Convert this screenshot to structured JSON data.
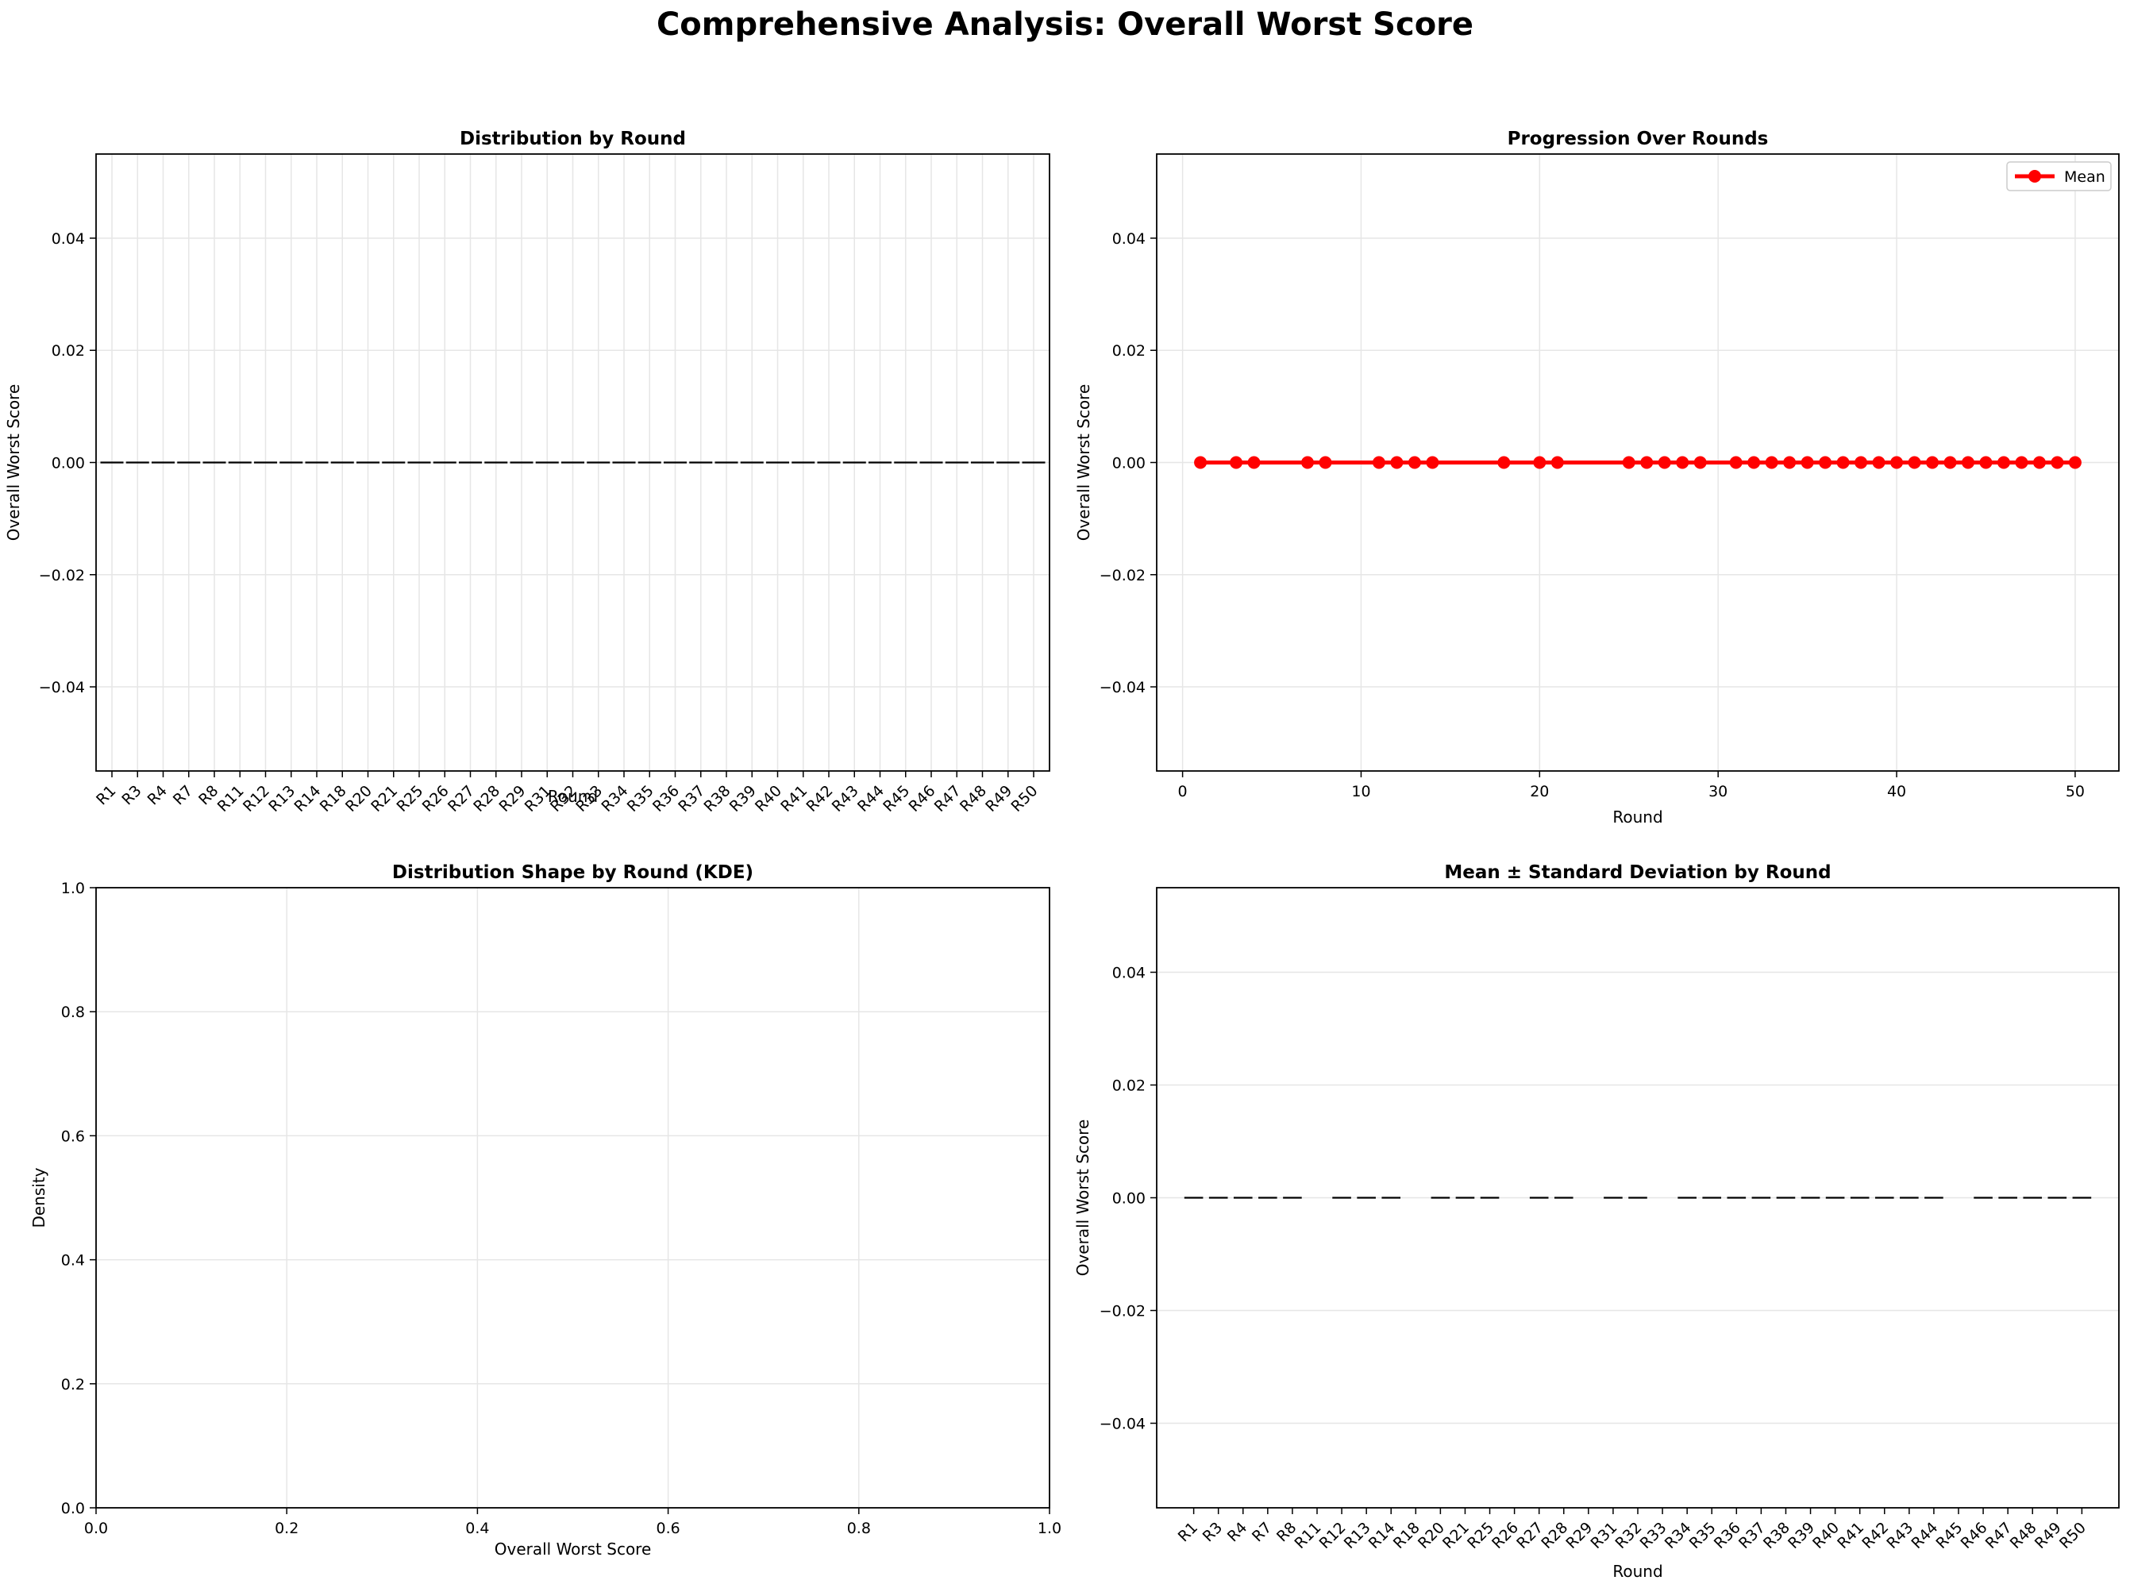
{
  "figure_title": "Comprehensive Analysis: Overall Worst Score",
  "chart_data": [
    {
      "type": "box",
      "title": "Distribution by Round",
      "xlabel": "Round",
      "ylabel": "Overall Worst Score",
      "categories": [
        "R1",
        "R3",
        "R4",
        "R7",
        "R8",
        "R11",
        "R12",
        "R13",
        "R14",
        "R18",
        "R20",
        "R21",
        "R25",
        "R26",
        "R27",
        "R28",
        "R29",
        "R31",
        "R32",
        "R33",
        "R34",
        "R35",
        "R36",
        "R37",
        "R38",
        "R39",
        "R40",
        "R41",
        "R42",
        "R43",
        "R44",
        "R45",
        "R46",
        "R47",
        "R48",
        "R49",
        "R50"
      ],
      "medians": [
        0,
        0,
        0,
        0,
        0,
        0,
        0,
        0,
        0,
        0,
        0,
        0,
        0,
        0,
        0,
        0,
        0,
        0,
        0,
        0,
        0,
        0,
        0,
        0,
        0,
        0,
        0,
        0,
        0,
        0,
        0,
        0,
        0,
        0,
        0,
        0,
        0
      ],
      "ylim": [
        -0.055,
        0.055
      ],
      "yticks": [
        -0.04,
        -0.02,
        0.0,
        0.02,
        0.04
      ],
      "ytick_labels": [
        "−0.04",
        "−0.02",
        "0.00",
        "0.02",
        "0.04"
      ],
      "grid": true
    },
    {
      "type": "line",
      "title": "Progression Over Rounds",
      "xlabel": "Round",
      "ylabel": "Overall Worst Score",
      "series": [
        {
          "name": "Mean",
          "color": "#ff0000",
          "x": [
            1,
            3,
            4,
            7,
            8,
            11,
            12,
            13,
            14,
            18,
            20,
            21,
            25,
            26,
            27,
            28,
            29,
            31,
            32,
            33,
            34,
            35,
            36,
            37,
            38,
            39,
            40,
            41,
            42,
            43,
            44,
            45,
            46,
            47,
            48,
            49,
            50
          ],
          "y": [
            0,
            0,
            0,
            0,
            0,
            0,
            0,
            0,
            0,
            0,
            0,
            0,
            0,
            0,
            0,
            0,
            0,
            0,
            0,
            0,
            0,
            0,
            0,
            0,
            0,
            0,
            0,
            0,
            0,
            0,
            0,
            0,
            0,
            0,
            0,
            0,
            0
          ]
        }
      ],
      "xlim": [
        -1.45,
        52.45
      ],
      "xticks": [
        0,
        10,
        20,
        30,
        40,
        50
      ],
      "xtick_labels": [
        "0",
        "10",
        "20",
        "30",
        "40",
        "50"
      ],
      "ylim": [
        -0.055,
        0.055
      ],
      "yticks": [
        -0.04,
        -0.02,
        0.0,
        0.02,
        0.04
      ],
      "ytick_labels": [
        "−0.04",
        "−0.02",
        "0.00",
        "0.02",
        "0.04"
      ],
      "legend": "top-right",
      "grid": true
    },
    {
      "type": "area",
      "title": "Distribution Shape by Round (KDE)",
      "xlabel": "Overall Worst Score",
      "ylabel": "Density",
      "series": [],
      "xlim": [
        0,
        1
      ],
      "ylim": [
        0,
        1
      ],
      "xticks": [
        0,
        0.2,
        0.4,
        0.6,
        0.8,
        1.0
      ],
      "xtick_labels": [
        "0.0",
        "0.2",
        "0.4",
        "0.6",
        "0.8",
        "1.0"
      ],
      "yticks": [
        0,
        0.2,
        0.4,
        0.6,
        0.8,
        1.0
      ],
      "ytick_labels": [
        "0.0",
        "0.2",
        "0.4",
        "0.6",
        "0.8",
        "1.0"
      ],
      "grid": true
    },
    {
      "type": "errorbar",
      "title": "Mean ± Standard Deviation by Round",
      "xlabel": "Round",
      "ylabel": "Overall Worst Score",
      "categories": [
        "R1",
        "R3",
        "R4",
        "R7",
        "R8",
        "R11",
        "R12",
        "R13",
        "R14",
        "R18",
        "R20",
        "R21",
        "R25",
        "R26",
        "R27",
        "R28",
        "R29",
        "R31",
        "R32",
        "R33",
        "R34",
        "R35",
        "R36",
        "R37",
        "R38",
        "R39",
        "R40",
        "R41",
        "R42",
        "R43",
        "R44",
        "R45",
        "R46",
        "R47",
        "R48",
        "R49",
        "R50"
      ],
      "means": [
        0,
        0,
        0,
        0,
        0,
        null,
        0,
        0,
        0,
        null,
        0,
        0,
        0,
        null,
        0,
        0,
        null,
        0,
        0,
        null,
        0,
        0,
        0,
        0,
        0,
        0,
        0,
        0,
        0,
        0,
        0,
        null,
        0,
        0,
        0,
        0,
        0
      ],
      "std": [
        0,
        0,
        0,
        0,
        0,
        0,
        0,
        0,
        0,
        0,
        0,
        0,
        0,
        0,
        0,
        0,
        0,
        0,
        0,
        0,
        0,
        0,
        0,
        0,
        0,
        0,
        0,
        0,
        0,
        0,
        0,
        0,
        0,
        0,
        0,
        0,
        0
      ],
      "ylim": [
        -0.055,
        0.055
      ],
      "yticks": [
        -0.04,
        -0.02,
        0.0,
        0.02,
        0.04
      ],
      "ytick_labels": [
        "−0.04",
        "−0.02",
        "0.00",
        "0.02",
        "0.04"
      ],
      "grid": true
    }
  ]
}
